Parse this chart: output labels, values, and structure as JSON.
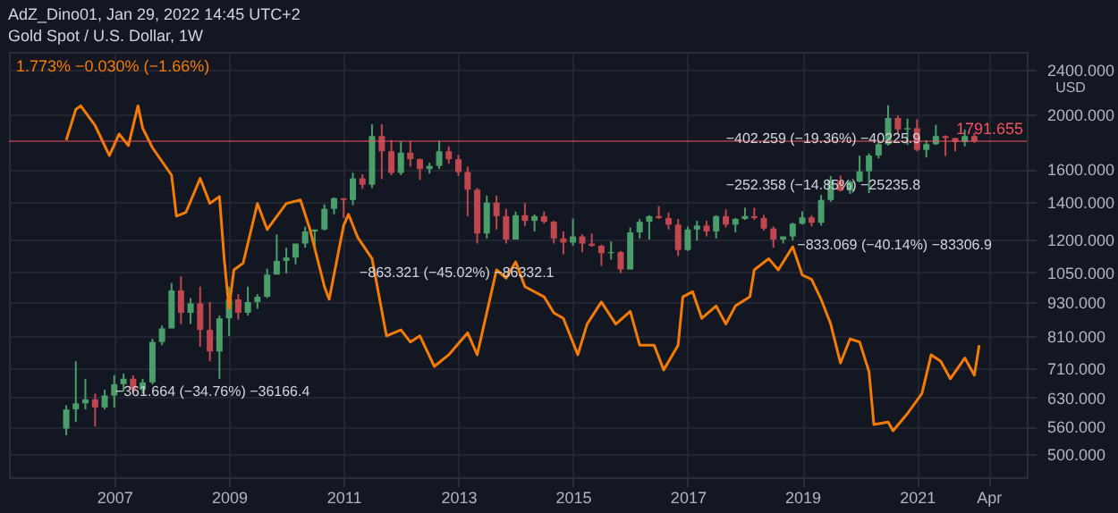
{
  "chart_data": {
    "type": "candlestick",
    "title": "AdZ_Dino01, Jan 29, 2022 14:45 UTC+2",
    "subtitle": "Gold Spot / U.S. Dollar, 1W",
    "ylabel": "USD",
    "log": "y",
    "grid": true,
    "xlim": [
      "2005-03",
      "2022-12"
    ],
    "ylim": [
      455,
      2580
    ],
    "xticks": [
      {
        "value": "2007-01",
        "label": "2007"
      },
      {
        "value": "2009-01",
        "label": "2009"
      },
      {
        "value": "2011-01",
        "label": "2011"
      },
      {
        "value": "2013-01",
        "label": "2013"
      },
      {
        "value": "2015-01",
        "label": "2015"
      },
      {
        "value": "2017-01",
        "label": "2017"
      },
      {
        "value": "2019-01",
        "label": "2019"
      },
      {
        "value": "2021-01",
        "label": "2021"
      },
      {
        "value": "2022-04",
        "label": "Apr"
      }
    ],
    "yticks": [
      {
        "value": 500,
        "label": "500.000"
      },
      {
        "value": 560,
        "label": "560.000"
      },
      {
        "value": 630,
        "label": "630.000"
      },
      {
        "value": 710,
        "label": "710.000"
      },
      {
        "value": 810,
        "label": "810.000"
      },
      {
        "value": 930,
        "label": "930.000"
      },
      {
        "value": 1050,
        "label": "1050.000"
      },
      {
        "value": 1200,
        "label": "1200.000"
      },
      {
        "value": 1400,
        "label": "1400.000"
      },
      {
        "value": 1600,
        "label": "1600.000"
      },
      {
        "value": 2000,
        "label": "2000.000"
      },
      {
        "value": 2400,
        "label": "2400.000"
      }
    ],
    "x": [
      "2006-03",
      "2006-05",
      "2006-07",
      "2006-09",
      "2006-11",
      "2007-01",
      "2007-03",
      "2007-05",
      "2007-07",
      "2007-09",
      "2007-11",
      "2008-01",
      "2008-03",
      "2008-05",
      "2008-07",
      "2008-09",
      "2008-11",
      "2009-01",
      "2009-03",
      "2009-05",
      "2009-07",
      "2009-09",
      "2009-11",
      "2010-01",
      "2010-03",
      "2010-05",
      "2010-07",
      "2010-09",
      "2010-11",
      "2011-01",
      "2011-03",
      "2011-05",
      "2011-07",
      "2011-09",
      "2011-11",
      "2012-01",
      "2012-03",
      "2012-05",
      "2012-07",
      "2012-09",
      "2012-11",
      "2013-01",
      "2013-03",
      "2013-05",
      "2013-07",
      "2013-09",
      "2013-11",
      "2014-01",
      "2014-03",
      "2014-05",
      "2014-07",
      "2014-09",
      "2014-11",
      "2015-01",
      "2015-03",
      "2015-05",
      "2015-07",
      "2015-09",
      "2015-11",
      "2016-01",
      "2016-03",
      "2016-05",
      "2016-07",
      "2016-09",
      "2016-11",
      "2017-01",
      "2017-03",
      "2017-05",
      "2017-07",
      "2017-09",
      "2017-11",
      "2018-01",
      "2018-03",
      "2018-05",
      "2018-07",
      "2018-09",
      "2018-11",
      "2019-01",
      "2019-03",
      "2019-05",
      "2019-07",
      "2019-09",
      "2019-11",
      "2020-01",
      "2020-03",
      "2020-05",
      "2020-07",
      "2020-09",
      "2020-11",
      "2021-01",
      "2021-03",
      "2021-05",
      "2021-07",
      "2021-09",
      "2021-11",
      "2022-01"
    ],
    "ohlc": [
      [
        555,
        610,
        540,
        600
      ],
      [
        600,
        730,
        570,
        615
      ],
      [
        615,
        680,
        600,
        625
      ],
      [
        625,
        640,
        560,
        605
      ],
      [
        605,
        650,
        600,
        635
      ],
      [
        635,
        690,
        605,
        665
      ],
      [
        665,
        695,
        645,
        680
      ],
      [
        680,
        690,
        640,
        650
      ],
      [
        650,
        680,
        640,
        670
      ],
      [
        670,
        800,
        665,
        790
      ],
      [
        790,
        845,
        780,
        835
      ],
      [
        835,
        1005,
        835,
        975
      ],
      [
        975,
        1032,
        850,
        890
      ],
      [
        890,
        945,
        850,
        925
      ],
      [
        925,
        990,
        775,
        830
      ],
      [
        830,
        930,
        730,
        760
      ],
      [
        760,
        880,
        680,
        870
      ],
      [
        870,
        990,
        810,
        940
      ],
      [
        940,
        960,
        865,
        890
      ],
      [
        890,
        990,
        880,
        930
      ],
      [
        930,
        960,
        905,
        950
      ],
      [
        950,
        1065,
        945,
        1040
      ],
      [
        1040,
        1225,
        1040,
        1100
      ],
      [
        1100,
        1160,
        1045,
        1115
      ],
      [
        1115,
        1180,
        1085,
        1180
      ],
      [
        1180,
        1265,
        1160,
        1240
      ],
      [
        1240,
        1250,
        1155,
        1250
      ],
      [
        1250,
        1385,
        1245,
        1360
      ],
      [
        1360,
        1425,
        1330,
        1420
      ],
      [
        1420,
        1420,
        1310,
        1410
      ],
      [
        1410,
        1575,
        1380,
        1540
      ],
      [
        1540,
        1565,
        1475,
        1500
      ],
      [
        1500,
        1920,
        1480,
        1830
      ],
      [
        1830,
        1920,
        1535,
        1720
      ],
      [
        1720,
        1800,
        1560,
        1575
      ],
      [
        1575,
        1790,
        1560,
        1710
      ],
      [
        1710,
        1790,
        1615,
        1665
      ],
      [
        1665,
        1670,
        1530,
        1600
      ],
      [
        1600,
        1640,
        1570,
        1620
      ],
      [
        1620,
        1795,
        1600,
        1720
      ],
      [
        1720,
        1755,
        1635,
        1665
      ],
      [
        1665,
        1695,
        1555,
        1580
      ],
      [
        1580,
        1615,
        1320,
        1470
      ],
      [
        1470,
        1480,
        1180,
        1230
      ],
      [
        1230,
        1435,
        1205,
        1395
      ],
      [
        1395,
        1435,
        1250,
        1320
      ],
      [
        1320,
        1360,
        1180,
        1200
      ],
      [
        1200,
        1345,
        1200,
        1325
      ],
      [
        1325,
        1392,
        1268,
        1295
      ],
      [
        1295,
        1330,
        1240,
        1320
      ],
      [
        1320,
        1345,
        1280,
        1290
      ],
      [
        1290,
        1295,
        1180,
        1205
      ],
      [
        1205,
        1240,
        1130,
        1185
      ],
      [
        1185,
        1307,
        1170,
        1215
      ],
      [
        1215,
        1225,
        1140,
        1180
      ],
      [
        1180,
        1230,
        1165,
        1170
      ],
      [
        1170,
        1175,
        1077,
        1135
      ],
      [
        1135,
        1190,
        1105,
        1140
      ],
      [
        1140,
        1145,
        1046,
        1062
      ],
      [
        1062,
        1260,
        1062,
        1235
      ],
      [
        1235,
        1305,
        1205,
        1290
      ],
      [
        1290,
        1325,
        1200,
        1320
      ],
      [
        1320,
        1375,
        1305,
        1310
      ],
      [
        1310,
        1340,
        1250,
        1275
      ],
      [
        1275,
        1305,
        1122,
        1150
      ],
      [
        1150,
        1265,
        1145,
        1250
      ],
      [
        1250,
        1295,
        1195,
        1270
      ],
      [
        1270,
        1296,
        1215,
        1240
      ],
      [
        1240,
        1325,
        1205,
        1320
      ],
      [
        1320,
        1357,
        1260,
        1275
      ],
      [
        1275,
        1310,
        1236,
        1305
      ],
      [
        1305,
        1366,
        1300,
        1320
      ],
      [
        1320,
        1365,
        1300,
        1310
      ],
      [
        1310,
        1326,
        1245,
        1255
      ],
      [
        1255,
        1265,
        1160,
        1200
      ],
      [
        1200,
        1215,
        1180,
        1215
      ],
      [
        1215,
        1285,
        1196,
        1280
      ],
      [
        1280,
        1346,
        1275,
        1313
      ],
      [
        1313,
        1325,
        1266,
        1285
      ],
      [
        1285,
        1440,
        1270,
        1410
      ],
      [
        1410,
        1555,
        1400,
        1525
      ],
      [
        1525,
        1557,
        1460,
        1465
      ],
      [
        1465,
        1525,
        1445,
        1520
      ],
      [
        1520,
        1690,
        1515,
        1585
      ],
      [
        1585,
        1705,
        1450,
        1690
      ],
      [
        1690,
        1790,
        1670,
        1770
      ],
      [
        1770,
        2075,
        1760,
        1970
      ],
      [
        1970,
        1990,
        1850,
        1880
      ],
      [
        1880,
        1965,
        1765,
        1890
      ],
      [
        1890,
        1960,
        1720,
        1730
      ],
      [
        1730,
        1800,
        1677,
        1770
      ],
      [
        1770,
        1916,
        1765,
        1830
      ],
      [
        1830,
        1835,
        1687,
        1815
      ],
      [
        1815,
        1815,
        1720,
        1785
      ],
      [
        1785,
        1878,
        1755,
        1830
      ],
      [
        1830,
        1853,
        1780,
        1792
      ]
    ],
    "colors": [
      "#4a9e6b",
      "#4a9e6b",
      "#4a9e6b",
      "#c0474f",
      "#4a9e6b",
      "#4a9e6b",
      "#4a9e6b",
      "#c0474f",
      "#4a9e6b",
      "#4a9e6b",
      "#4a9e6b",
      "#4a9e6b",
      "#c0474f",
      "#4a9e6b",
      "#c0474f",
      "#c0474f",
      "#4a9e6b",
      "#4a9e6b",
      "#c0474f",
      "#4a9e6b",
      "#4a9e6b",
      "#4a9e6b",
      "#4a9e6b",
      "#4a9e6b",
      "#4a9e6b",
      "#4a9e6b",
      "#4a9e6b",
      "#4a9e6b",
      "#4a9e6b",
      "#c0474f",
      "#4a9e6b",
      "#c0474f",
      "#4a9e6b",
      "#c0474f",
      "#c0474f",
      "#4a9e6b",
      "#c0474f",
      "#c0474f",
      "#4a9e6b",
      "#4a9e6b",
      "#c0474f",
      "#c0474f",
      "#c0474f",
      "#c0474f",
      "#4a9e6b",
      "#c0474f",
      "#c0474f",
      "#4a9e6b",
      "#c0474f",
      "#4a9e6b",
      "#c0474f",
      "#c0474f",
      "#c0474f",
      "#4a9e6b",
      "#c0474f",
      "#c0474f",
      "#c0474f",
      "#4a9e6b",
      "#c0474f",
      "#4a9e6b",
      "#4a9e6b",
      "#4a9e6b",
      "#c0474f",
      "#c0474f",
      "#c0474f",
      "#4a9e6b",
      "#4a9e6b",
      "#c0474f",
      "#4a9e6b",
      "#c0474f",
      "#4a9e6b",
      "#4a9e6b",
      "#c0474f",
      "#c0474f",
      "#c0474f",
      "#4a9e6b",
      "#4a9e6b",
      "#4a9e6b",
      "#c0474f",
      "#4a9e6b",
      "#4a9e6b",
      "#c0474f",
      "#4a9e6b",
      "#4a9e6b",
      "#4a9e6b",
      "#4a9e6b",
      "#4a9e6b",
      "#c0474f",
      "#4a9e6b",
      "#c0474f",
      "#4a9e6b",
      "#4a9e6b",
      "#c0474f",
      "#c0474f",
      "#4a9e6b",
      "#c0474f"
    ],
    "series": [
      {
        "type": "line",
        "name": "1.773% −0.030% (−1.66%)",
        "color": "#f57c00",
        "x": [
          "2006-03",
          "2006-05",
          "2006-06",
          "2006-09",
          "2006-12",
          "2007-02",
          "2007-04",
          "2007-06",
          "2007-07",
          "2007-09",
          "2008-01",
          "2008-02",
          "2008-04",
          "2008-07",
          "2008-09",
          "2008-11",
          "2008-12",
          "2009-01",
          "2009-02",
          "2009-04",
          "2009-07",
          "2009-09",
          "2010-01",
          "2010-04",
          "2010-06",
          "2010-09",
          "2010-10",
          "2011-01",
          "2011-02",
          "2011-04",
          "2011-07",
          "2011-10",
          "2012-01",
          "2012-03",
          "2012-05",
          "2012-08",
          "2012-11",
          "2013-03",
          "2013-05",
          "2013-07",
          "2013-09",
          "2013-11",
          "2014-01",
          "2014-03",
          "2014-07",
          "2014-09",
          "2014-11",
          "2015-02",
          "2015-04",
          "2015-07",
          "2015-10",
          "2016-01",
          "2016-03",
          "2016-06",
          "2016-08",
          "2016-11",
          "2016-12",
          "2017-02",
          "2017-04",
          "2017-07",
          "2017-09",
          "2017-11",
          "2018-02",
          "2018-03",
          "2018-06",
          "2018-08",
          "2018-11",
          "2019-01",
          "2019-03",
          "2019-05",
          "2019-07",
          "2019-09",
          "2019-11",
          "2020-01",
          "2020-03",
          "2020-04",
          "2020-07",
          "2020-08",
          "2020-11",
          "2021-02",
          "2021-04",
          "2021-06",
          "2021-08",
          "2021-11",
          "2022-01",
          "2022-02"
        ],
        "values": [
          1800,
          2040,
          2070,
          1910,
          1690,
          1845,
          1760,
          2070,
          1890,
          1745,
          1560,
          1320,
          1340,
          1540,
          1390,
          1430,
          1110,
          906,
          1060,
          1090,
          1390,
          1250,
          1390,
          1410,
          1250,
          990,
          940,
          1270,
          1330,
          1210,
          1110,
          810,
          830,
          790,
          810,
          715,
          750,
          820,
          750,
          890,
          1060,
          1025,
          1095,
          990,
          950,
          890,
          870,
          750,
          850,
          930,
          850,
          895,
          780,
          780,
          705,
          780,
          950,
          970,
          870,
          915,
          850,
          915,
          950,
          1060,
          1110,
          1060,
          1165,
          1038,
          1020,
          940,
          850,
          725,
          800,
          790,
          700,
          564,
          570,
          550,
          590,
          640,
          750,
          730,
          680,
          740,
          690,
          780
        ]
      }
    ],
    "ref_lines": [
      {
        "axis": "y",
        "value": 1791.655,
        "label": "1791.655",
        "color": "#f7525f"
      }
    ],
    "annotations": [
      "−361.664 (−34.76%) −36166.4",
      "−863.321 (−45.02%) −86332.1",
      "−402.259 (−19.36%) −40225.9",
      "−252.358 (−14.85%) −25235.8",
      "−833.069 (−40.14%) −83306.9"
    ]
  }
}
